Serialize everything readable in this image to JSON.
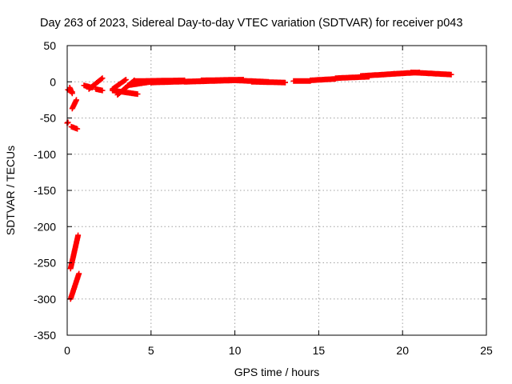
{
  "chart_data": {
    "type": "scatter",
    "title": "Day 263 of 2023, Sidereal Day-to-day VTEC variation (SDTVAR) for receiver p043",
    "xlabel": "GPS time / hours",
    "ylabel": "SDTVAR / TECUs",
    "xlim": [
      0,
      25
    ],
    "ylim": [
      -350,
      50
    ],
    "xticks": [
      0,
      5,
      10,
      15,
      20,
      25
    ],
    "yticks": [
      -350,
      -300,
      -250,
      -200,
      -150,
      -100,
      -50,
      0,
      50
    ],
    "xtick_labels": [
      "0",
      "5",
      "10",
      "15",
      "20",
      "25"
    ],
    "ytick_labels": [
      "-350",
      "-300",
      "-250",
      "-200",
      "-150",
      "-100",
      "-50",
      "0",
      "50"
    ],
    "grid": true,
    "marker": "plus",
    "color": "#ff0000",
    "series": [
      {
        "name": "SDTVAR",
        "segments": [
          {
            "x0": 0.0,
            "x1": 0.05,
            "y0": -57,
            "y1": -56
          },
          {
            "x0": 0.05,
            "x1": 0.3,
            "y0": -11,
            "y1": -14
          },
          {
            "x0": 0.15,
            "x1": 0.3,
            "y0": -8,
            "y1": -16
          },
          {
            "x0": 0.25,
            "x1": 0.6,
            "y0": -62,
            "y1": -65
          },
          {
            "x0": 0.3,
            "x1": 0.55,
            "y0": -37,
            "y1": -25
          },
          {
            "x0": 0.2,
            "x1": 0.65,
            "y0": -258,
            "y1": -212
          },
          {
            "x0": 0.2,
            "x1": 0.7,
            "y0": -300,
            "y1": -265
          },
          {
            "x0": 1.0,
            "x1": 1.5,
            "y0": -5,
            "y1": -8
          },
          {
            "x0": 1.3,
            "x1": 2.1,
            "y0": -10,
            "y1": 5
          },
          {
            "x0": 1.7,
            "x1": 2.1,
            "y0": -10,
            "y1": -12
          },
          {
            "x0": 2.7,
            "x1": 3.5,
            "y0": -10,
            "y1": 3
          },
          {
            "x0": 2.7,
            "x1": 4.2,
            "y0": -12,
            "y1": -17
          },
          {
            "x0": 3.0,
            "x1": 4.0,
            "y0": -18,
            "y1": 2
          },
          {
            "x0": 3.6,
            "x1": 5.0,
            "y0": -5,
            "y1": 0
          },
          {
            "x0": 4.0,
            "x1": 7.0,
            "y0": 1,
            "y1": 2
          },
          {
            "x0": 5.0,
            "x1": 8.0,
            "y0": -1,
            "y1": 1
          },
          {
            "x0": 7.0,
            "x1": 10.0,
            "y0": 0,
            "y1": 2
          },
          {
            "x0": 8.0,
            "x1": 10.5,
            "y0": 2,
            "y1": 3
          },
          {
            "x0": 10.0,
            "x1": 12.0,
            "y0": 2,
            "y1": 0
          },
          {
            "x0": 11.0,
            "x1": 13.0,
            "y0": 0,
            "y1": -1
          },
          {
            "x0": 13.5,
            "x1": 14.5,
            "y0": 1,
            "y1": 1
          },
          {
            "x0": 14.5,
            "x1": 16.0,
            "y0": 2,
            "y1": 4
          },
          {
            "x0": 16.0,
            "x1": 18.0,
            "y0": 5,
            "y1": 7
          },
          {
            "x0": 17.5,
            "x1": 19.5,
            "y0": 8,
            "y1": 11
          },
          {
            "x0": 19.5,
            "x1": 21.0,
            "y0": 11,
            "y1": 13
          },
          {
            "x0": 20.5,
            "x1": 22.9,
            "y0": 13,
            "y1": 10
          }
        ]
      }
    ]
  }
}
